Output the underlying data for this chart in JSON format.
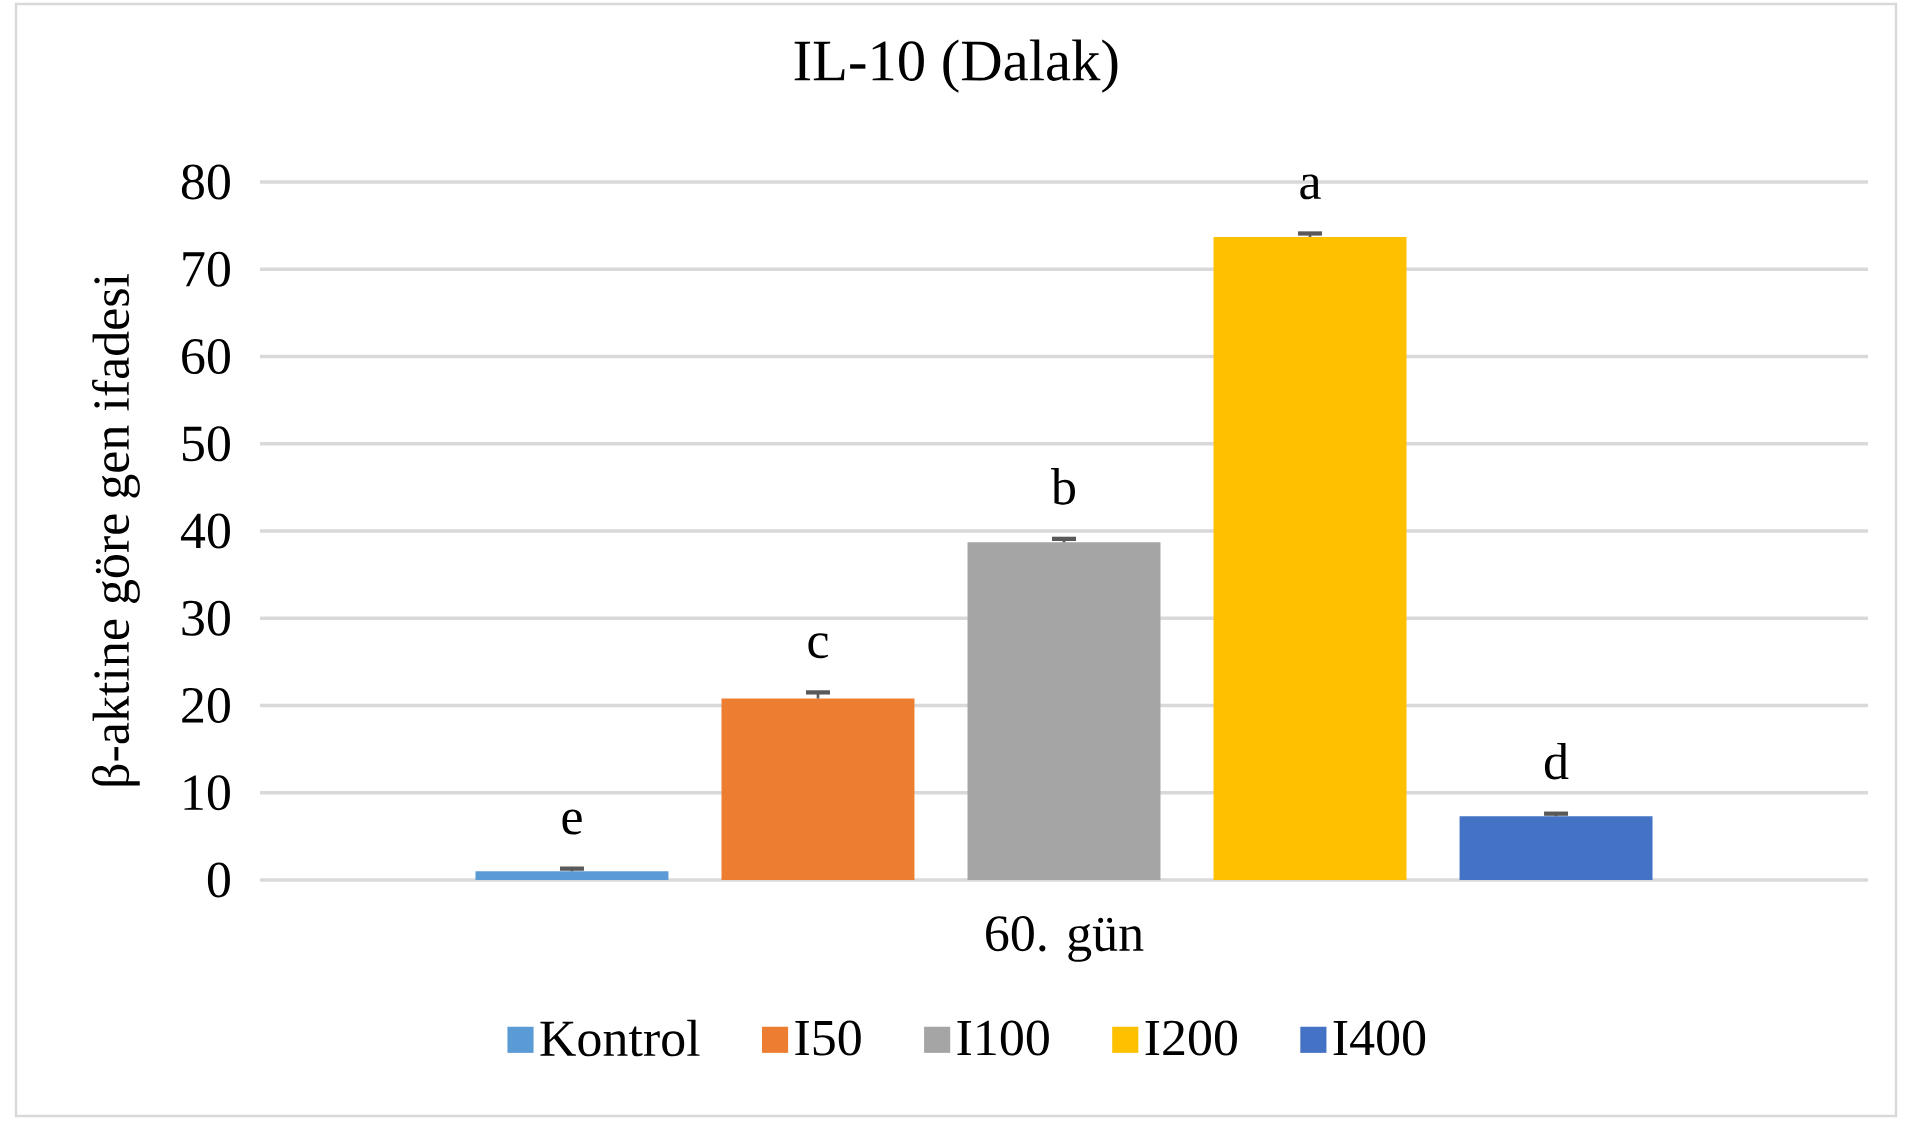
{
  "chart_data": {
    "type": "bar",
    "title": "IL-10 (Dalak)",
    "ylabel": "β-aktine göre gen ifadesi",
    "categories": [
      "60. gün"
    ],
    "series": [
      {
        "name": "Kontrol",
        "color": "#5b9bd5",
        "values": [
          1.0
        ],
        "errors": [
          [
            1.0,
            1.3
          ]
        ],
        "value_labels": [
          "e"
        ]
      },
      {
        "name": "I50",
        "color": "#ed7d31",
        "values": [
          20.8
        ],
        "errors": [
          [
            20.8,
            21.5
          ]
        ],
        "value_labels": [
          "c"
        ]
      },
      {
        "name": "I100",
        "color": "#a5a5a5",
        "values": [
          38.7
        ],
        "errors": [
          [
            38.7,
            39.1
          ]
        ],
        "value_labels": [
          "b"
        ]
      },
      {
        "name": "I200",
        "color": "#ffc000",
        "values": [
          73.7
        ],
        "errors": [
          [
            73.7,
            74.1
          ]
        ],
        "value_labels": [
          "a"
        ]
      },
      {
        "name": "I400",
        "color": "#4472c4",
        "values": [
          7.3
        ],
        "errors": [
          [
            7.3,
            7.6
          ]
        ],
        "value_labels": [
          "d"
        ]
      }
    ],
    "ylim": [
      0,
      80
    ],
    "yticks": [
      0,
      10,
      20,
      30,
      40,
      50,
      60,
      70,
      80
    ],
    "grid": "y",
    "legend": "bottom"
  }
}
